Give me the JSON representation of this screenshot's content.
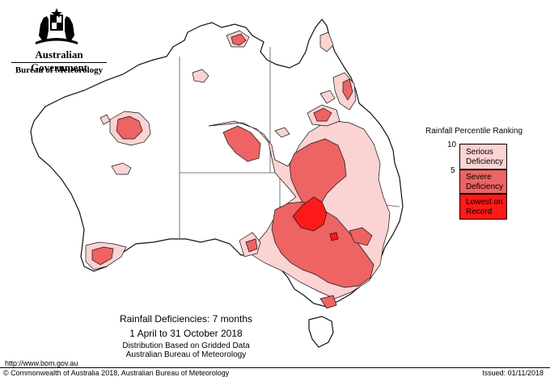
{
  "header": {
    "government": "Australian Government",
    "bureau": "Bureau of Meteorology"
  },
  "legend": {
    "title": "Rainfall Percentile Ranking",
    "ticks": [
      "10",
      "5"
    ],
    "classes": [
      {
        "label_line1": "Serious",
        "label_line2": "Deficiency",
        "color": "#fbd3d3"
      },
      {
        "label_line1": "Severe",
        "label_line2": "Deficiency",
        "color": "#ee6363"
      },
      {
        "label_line1": "Lowest on",
        "label_line2": "Record",
        "color": "#ff1a1a"
      }
    ]
  },
  "caption": {
    "title": "Rainfall Deficiencies: 7 months",
    "period": "1 April to 31 October 2018",
    "method": "Distribution Based on Gridded Data",
    "source": "Australian Bureau of Meteorology"
  },
  "footer": {
    "url": "http://www.bom.gov.au",
    "copyright": "© Commonwealth of Australia 2018, Australian Bureau of Meteorology",
    "issued": "Issued: 01/11/2018"
  },
  "colors": {
    "serious": "#fbd3d3",
    "severe": "#ee6363",
    "record": "#ff1a1a",
    "outline": "#111111",
    "border": "#555555"
  }
}
